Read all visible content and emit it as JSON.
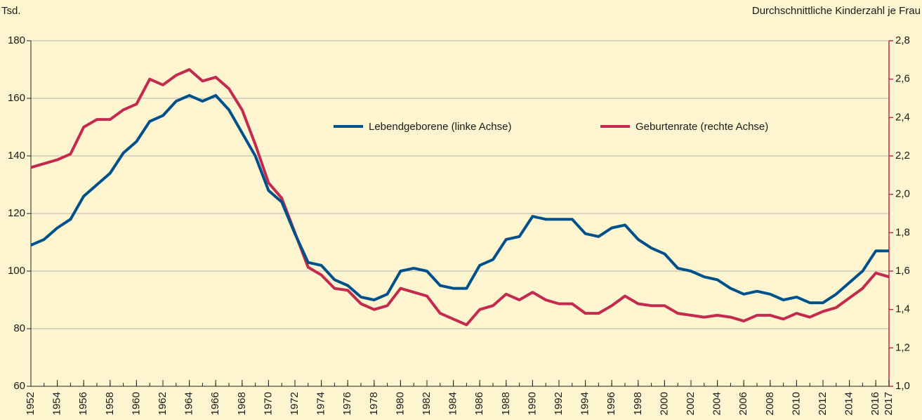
{
  "chart_data": {
    "type": "line",
    "y_label": "Tsd.",
    "y2_label": "Durchschnittliche Kinderzahl je Frau",
    "x": [
      1952,
      1953,
      1954,
      1955,
      1956,
      1957,
      1958,
      1959,
      1960,
      1961,
      1962,
      1963,
      1964,
      1965,
      1966,
      1967,
      1968,
      1969,
      1970,
      1971,
      1972,
      1973,
      1974,
      1975,
      1976,
      1977,
      1978,
      1979,
      1980,
      1981,
      1982,
      1983,
      1984,
      1985,
      1986,
      1987,
      1988,
      1989,
      1990,
      1991,
      1992,
      1993,
      1994,
      1995,
      1996,
      1997,
      1998,
      1999,
      2000,
      2001,
      2002,
      2003,
      2004,
      2005,
      2006,
      2007,
      2008,
      2009,
      2010,
      2011,
      2012,
      2013,
      2014,
      2015,
      2016,
      2017
    ],
    "xlim": [
      1952,
      2017
    ],
    "xticks": [
      1952,
      1954,
      1956,
      1958,
      1960,
      1962,
      1964,
      1966,
      1968,
      1970,
      1972,
      1974,
      1976,
      1978,
      1980,
      1982,
      1984,
      1986,
      1988,
      1990,
      1992,
      1994,
      1996,
      1998,
      2000,
      2002,
      2004,
      2006,
      2008,
      2010,
      2012,
      2014,
      2016,
      2017
    ],
    "ylim": [
      60,
      180
    ],
    "yticks": [
      60,
      80,
      100,
      120,
      140,
      160,
      180
    ],
    "y2lim": [
      1.0,
      2.8
    ],
    "y2ticks": [
      {
        "value": 1.0,
        "label": "1,0"
      },
      {
        "value": 1.2,
        "label": "1,2"
      },
      {
        "value": 1.4,
        "label": "1,4"
      },
      {
        "value": 1.6,
        "label": "1,6"
      },
      {
        "value": 1.8,
        "label": "1,8"
      },
      {
        "value": 2.0,
        "label": "2,0"
      },
      {
        "value": 2.2,
        "label": "2,2"
      },
      {
        "value": 2.4,
        "label": "2,4"
      },
      {
        "value": 2.6,
        "label": "2,6"
      },
      {
        "value": 2.8,
        "label": "2,8"
      }
    ],
    "y2_color": "#c42a4d",
    "grid": true,
    "series": [
      {
        "name": "Lebendgeborene (linke Achse)",
        "color": "#00508c",
        "axis": "y",
        "values": [
          109,
          111,
          115,
          118,
          126,
          130,
          134,
          141,
          145,
          152,
          154,
          159,
          161,
          159,
          161,
          156,
          148,
          140,
          128,
          124,
          113,
          103,
          102,
          97,
          95,
          91,
          90,
          92,
          100,
          101,
          100,
          95,
          94,
          94,
          102,
          104,
          111,
          112,
          119,
          118,
          118,
          118,
          113,
          112,
          115,
          116,
          111,
          108,
          106,
          101,
          100,
          98,
          97,
          94,
          92,
          93,
          92,
          90,
          91,
          89,
          89,
          92,
          96,
          100,
          107,
          107
        ]
      },
      {
        "name": "Geburtenrate (rechte Achse)",
        "color": "#c42a4d",
        "axis": "y2",
        "values": [
          2.14,
          2.16,
          2.18,
          2.21,
          2.35,
          2.39,
          2.39,
          2.44,
          2.47,
          2.6,
          2.57,
          2.62,
          2.65,
          2.59,
          2.61,
          2.55,
          2.44,
          2.26,
          2.06,
          1.98,
          1.8,
          1.62,
          1.58,
          1.51,
          1.5,
          1.43,
          1.4,
          1.42,
          1.51,
          1.49,
          1.47,
          1.38,
          1.35,
          1.32,
          1.4,
          1.42,
          1.48,
          1.45,
          1.49,
          1.45,
          1.43,
          1.43,
          1.38,
          1.38,
          1.42,
          1.47,
          1.43,
          1.42,
          1.42,
          1.38,
          1.37,
          1.36,
          1.37,
          1.36,
          1.34,
          1.37,
          1.37,
          1.35,
          1.38,
          1.36,
          1.39,
          1.41,
          1.46,
          1.51,
          1.59,
          1.57
        ]
      }
    ]
  }
}
